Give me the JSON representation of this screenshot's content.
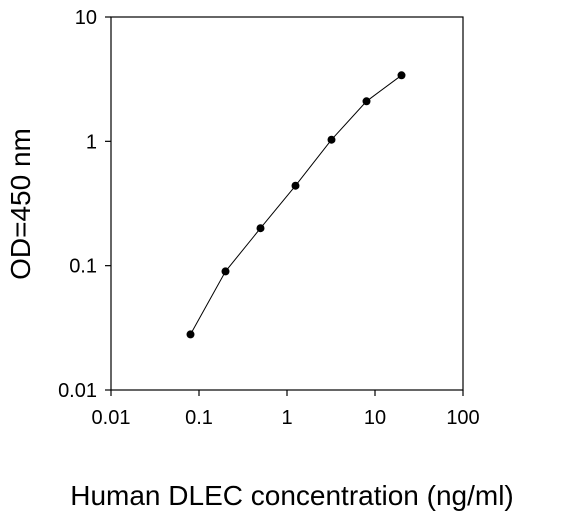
{
  "chart_data": {
    "type": "scatter",
    "title": "",
    "xlabel": "Human DLEC concentration (ng/ml)",
    "ylabel": "OD=450 nm",
    "xscale": "log",
    "yscale": "log",
    "xlim": [
      0.01,
      100
    ],
    "ylim": [
      0.01,
      10
    ],
    "xticks": [
      {
        "value": 0.01,
        "label": "0.01"
      },
      {
        "value": 0.1,
        "label": "0.1"
      },
      {
        "value": 1,
        "label": "1"
      },
      {
        "value": 10,
        "label": "10"
      },
      {
        "value": 100,
        "label": "100"
      }
    ],
    "yticks": [
      {
        "value": 0.01,
        "label": "0.01"
      },
      {
        "value": 0.1,
        "label": "0.1"
      },
      {
        "value": 1,
        "label": "1"
      },
      {
        "value": 10,
        "label": "10"
      }
    ],
    "grid": false,
    "series": [
      {
        "x": [
          0.08,
          0.2,
          0.5,
          1.25,
          3.2,
          8,
          20
        ],
        "y": [
          0.028,
          0.09,
          0.2,
          0.44,
          1.03,
          2.1,
          3.4
        ],
        "marker": "circle",
        "color": "#000000",
        "line": true
      }
    ]
  }
}
